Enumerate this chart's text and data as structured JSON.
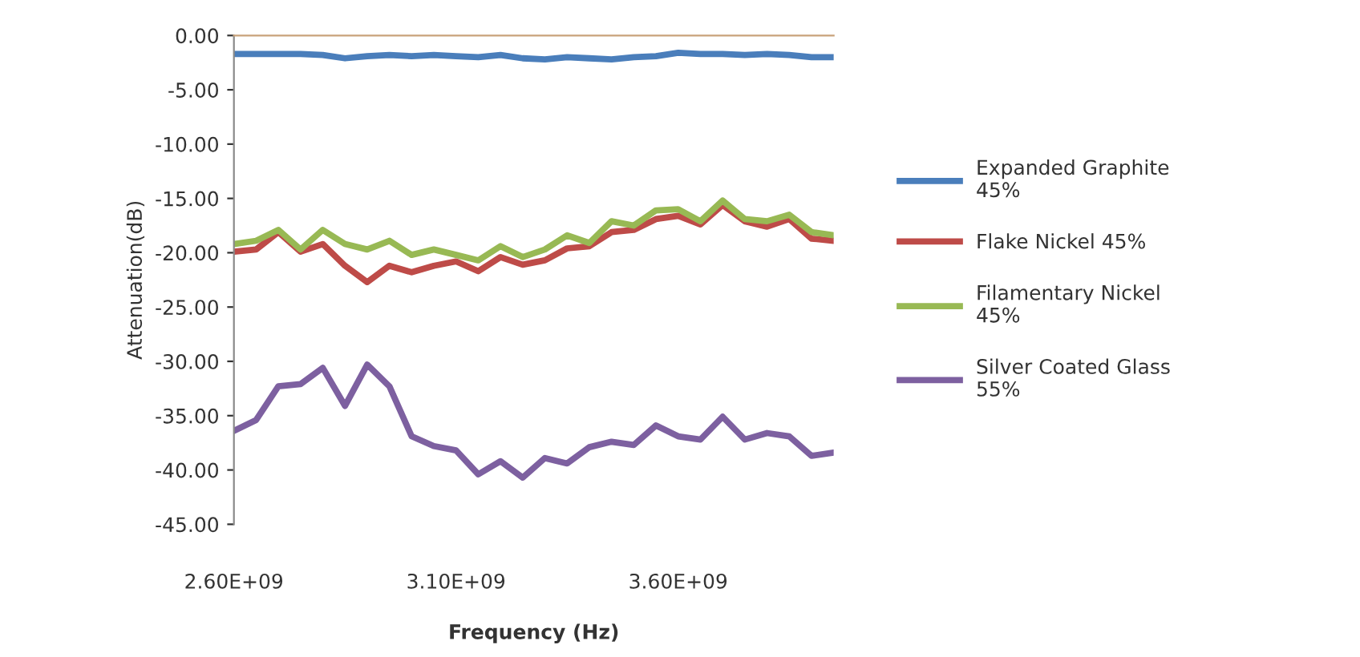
{
  "chart_data": {
    "type": "line",
    "xlabel": "Frequency (Hz)",
    "ylabel": "Attenuation(dB)",
    "x": [
      2600000000.0,
      2650000000.0,
      2700000000.0,
      2750000000.0,
      2800000000.0,
      2850000000.0,
      2900000000.0,
      2950000000.0,
      3000000000.0,
      3050000000.0,
      3100000000.0,
      3150000000.0,
      3200000000.0,
      3250000000.0,
      3300000000.0,
      3350000000.0,
      3400000000.0,
      3450000000.0,
      3500000000.0,
      3550000000.0,
      3600000000.0,
      3650000000.0,
      3700000000.0,
      3750000000.0,
      3800000000.0,
      3850000000.0,
      3900000000.0,
      3950000000.0
    ],
    "series": [
      {
        "name": "Expanded Graphite\n45%",
        "color": "#4a7ebb",
        "values": [
          -1.7,
          -1.7,
          -1.7,
          -1.7,
          -1.8,
          -2.1,
          -1.9,
          -1.8,
          -1.9,
          -1.8,
          -1.9,
          -2.0,
          -1.8,
          -2.1,
          -2.2,
          -2.0,
          -2.1,
          -2.2,
          -2.0,
          -1.9,
          -1.6,
          -1.7,
          -1.7,
          -1.8,
          -1.7,
          -1.8,
          -2.0,
          -2.0
        ]
      },
      {
        "name": "Flake Nickel 45%",
        "color": "#be4b48",
        "values": [
          -19.9,
          -19.7,
          -18.1,
          -19.9,
          -19.2,
          -21.2,
          -22.7,
          -21.2,
          -21.8,
          -21.2,
          -20.8,
          -21.7,
          -20.4,
          -21.1,
          -20.7,
          -19.6,
          -19.4,
          -18.1,
          -17.9,
          -16.9,
          -16.6,
          -17.4,
          -15.6,
          -17.1,
          -17.6,
          -16.9,
          -18.7,
          -18.9
        ]
      },
      {
        "name": "Filamentary Nickel\n45%",
        "color": "#98b954",
        "values": [
          -19.2,
          -18.9,
          -17.9,
          -19.7,
          -17.9,
          -19.2,
          -19.7,
          -18.9,
          -20.2,
          -19.7,
          -20.2,
          -20.7,
          -19.4,
          -20.4,
          -19.7,
          -18.4,
          -19.1,
          -17.1,
          -17.5,
          -16.1,
          -16.0,
          -17.1,
          -15.2,
          -16.9,
          -17.1,
          -16.5,
          -18.1,
          -18.4
        ]
      },
      {
        "name": "Silver Coated Glass\n55%",
        "color": "#7d60a0",
        "values": [
          -36.4,
          -35.4,
          -32.3,
          -32.1,
          -30.6,
          -34.1,
          -30.3,
          -32.3,
          -36.9,
          -37.8,
          -38.2,
          -40.4,
          -39.2,
          -40.7,
          -38.9,
          -39.4,
          -37.9,
          -37.4,
          -37.7,
          -35.9,
          -36.9,
          -37.2,
          -35.1,
          -37.2,
          -36.6,
          -36.9,
          -38.7,
          -38.4
        ]
      }
    ],
    "xlim": [
      2600000000.0,
      3950000000.0
    ],
    "xticks": [
      {
        "value": 2600000000.0,
        "label": "2.60E+09"
      },
      {
        "value": 3100000000.0,
        "label": "3.10E+09"
      },
      {
        "value": 3600000000.0,
        "label": "3.60E+09"
      }
    ],
    "ylim": [
      -45,
      0
    ],
    "yticks": [
      {
        "value": 0,
        "label": "0.00"
      },
      {
        "value": -5,
        "label": "-5.00"
      },
      {
        "value": -10,
        "label": "-10.00"
      },
      {
        "value": -15,
        "label": "-15.00"
      },
      {
        "value": -20,
        "label": "-20.00"
      },
      {
        "value": -25,
        "label": "-25.00"
      },
      {
        "value": -30,
        "label": "-30.00"
      },
      {
        "value": -35,
        "label": "-35.00"
      },
      {
        "value": -40,
        "label": "-40.00"
      },
      {
        "value": -45,
        "label": "-45.00"
      }
    ],
    "legend": "right",
    "grid": false,
    "marker": "none",
    "line_style": "solid"
  }
}
